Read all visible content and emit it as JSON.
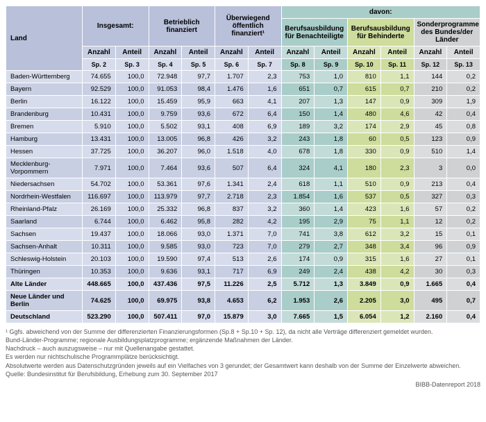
{
  "header": {
    "land": "Land",
    "groups": [
      {
        "label": "Insgesamt:",
        "class": "blue1",
        "sub": [
          "Anzahl",
          "Anteil"
        ],
        "sp": [
          "Sp. 2",
          "Sp. 3"
        ]
      },
      {
        "label": "Betrieblich finanziert",
        "class": "blue1",
        "sub": [
          "Anzahl",
          "Anteil"
        ],
        "sp": [
          "Sp. 4",
          "Sp. 5"
        ]
      },
      {
        "label": "Überwiegend öffentlich finanziert¹",
        "class": "blue1",
        "sub": [
          "Anzahl",
          "Anteil"
        ],
        "sp": [
          "Sp. 6",
          "Sp. 7"
        ]
      }
    ],
    "davon": "davon:",
    "davon_groups": [
      {
        "label": "Berufsausbildung für Benachteiligte",
        "class": "teal1",
        "sub": [
          "Anzahl",
          "Anteil"
        ],
        "sp": [
          "Sp. 8",
          "Sp. 9"
        ]
      },
      {
        "label": "Berufsausbildung für Behinderte",
        "class": "lime1",
        "sub": [
          "Anzahl",
          "Anteil"
        ],
        "sp": [
          "Sp. 10",
          "Sp. 11"
        ]
      },
      {
        "label": "Sonderprogramme des Bundes/der Länder",
        "class": "gray1",
        "sub": [
          "Anzahl",
          "Anteil"
        ],
        "sp": [
          "Sp. 12",
          "Sp. 13"
        ]
      }
    ]
  },
  "rows": [
    {
      "land": "Baden-Württemberg",
      "v": [
        "74.655",
        "100,0",
        "72.948",
        "97,7",
        "1.707",
        "2,3",
        "753",
        "1,0",
        "810",
        "1,1",
        "144",
        "0,2"
      ]
    },
    {
      "land": "Bayern",
      "v": [
        "92.529",
        "100,0",
        "91.053",
        "98,4",
        "1.476",
        "1,6",
        "651",
        "0,7",
        "615",
        "0,7",
        "210",
        "0,2"
      ]
    },
    {
      "land": "Berlin",
      "v": [
        "16.122",
        "100,0",
        "15.459",
        "95,9",
        "663",
        "4,1",
        "207",
        "1,3",
        "147",
        "0,9",
        "309",
        "1,9"
      ]
    },
    {
      "land": "Brandenburg",
      "v": [
        "10.431",
        "100,0",
        "9.759",
        "93,6",
        "672",
        "6,4",
        "150",
        "1,4",
        "480",
        "4,6",
        "42",
        "0,4"
      ]
    },
    {
      "land": "Bremen",
      "v": [
        "5.910",
        "100,0",
        "5.502",
        "93,1",
        "408",
        "6,9",
        "189",
        "3,2",
        "174",
        "2,9",
        "45",
        "0,8"
      ]
    },
    {
      "land": "Hamburg",
      "v": [
        "13.431",
        "100,0",
        "13.005",
        "96,8",
        "426",
        "3,2",
        "243",
        "1,8",
        "60",
        "0,5",
        "123",
        "0,9"
      ]
    },
    {
      "land": "Hessen",
      "v": [
        "37.725",
        "100,0",
        "36.207",
        "96,0",
        "1.518",
        "4,0",
        "678",
        "1,8",
        "330",
        "0,9",
        "510",
        "1,4"
      ]
    },
    {
      "land": "Mecklenburg-Vorpommern",
      "v": [
        "7.971",
        "100,0",
        "7.464",
        "93,6",
        "507",
        "6,4",
        "324",
        "4,1",
        "180",
        "2,3",
        "3",
        "0,0"
      ]
    },
    {
      "land": "Niedersachsen",
      "v": [
        "54.702",
        "100,0",
        "53.361",
        "97,6",
        "1.341",
        "2,4",
        "618",
        "1,1",
        "510",
        "0,9",
        "213",
        "0,4"
      ]
    },
    {
      "land": "Nordrhein-Westfalen",
      "v": [
        "116.697",
        "100,0",
        "113.979",
        "97,7",
        "2.718",
        "2,3",
        "1.854",
        "1,6",
        "537",
        "0,5",
        "327",
        "0,3"
      ]
    },
    {
      "land": "Rheinland-Pfalz",
      "v": [
        "26.169",
        "100,0",
        "25.332",
        "96,8",
        "837",
        "3,2",
        "360",
        "1,4",
        "423",
        "1,6",
        "57",
        "0,2"
      ]
    },
    {
      "land": "Saarland",
      "v": [
        "6.744",
        "100,0",
        "6.462",
        "95,8",
        "282",
        "4,2",
        "195",
        "2,9",
        "75",
        "1,1",
        "12",
        "0,2"
      ]
    },
    {
      "land": "Sachsen",
      "v": [
        "19.437",
        "100,0",
        "18.066",
        "93,0",
        "1.371",
        "7,0",
        "741",
        "3,8",
        "612",
        "3,2",
        "15",
        "0,1"
      ]
    },
    {
      "land": "Sachsen-Anhalt",
      "v": [
        "10.311",
        "100,0",
        "9.585",
        "93,0",
        "723",
        "7,0",
        "279",
        "2,7",
        "348",
        "3,4",
        "96",
        "0,9"
      ]
    },
    {
      "land": "Schleswig-Holstein",
      "v": [
        "20.103",
        "100,0",
        "19.590",
        "97,4",
        "513",
        "2,6",
        "174",
        "0,9",
        "315",
        "1,6",
        "27",
        "0,1"
      ]
    },
    {
      "land": "Thüringen",
      "v": [
        "10.353",
        "100,0",
        "9.636",
        "93,1",
        "717",
        "6,9",
        "249",
        "2,4",
        "438",
        "4,2",
        "30",
        "0,3"
      ]
    }
  ],
  "summary": [
    {
      "land": "Alte Länder",
      "v": [
        "448.665",
        "100,0",
        "437.436",
        "97,5",
        "11.226",
        "2,5",
        "5.712",
        "1,3",
        "3.849",
        "0,9",
        "1.665",
        "0,4"
      ]
    },
    {
      "land": "Neue Länder und Berlin",
      "v": [
        "74.625",
        "100,0",
        "69.975",
        "93,8",
        "4.653",
        "6,2",
        "1.953",
        "2,6",
        "2.205",
        "3,0",
        "495",
        "0,7"
      ]
    },
    {
      "land": "Deutschland",
      "v": [
        "523.290",
        "100,0",
        "507.411",
        "97,0",
        "15.879",
        "3,0",
        "7.665",
        "1,5",
        "6.054",
        "1,2",
        "2.160",
        "0,4"
      ]
    }
  ],
  "footnotes": [
    "¹ Ggfs. abweichend von der Summe der differenzierten Finanzierungsformen (Sp.8 + Sp.10 + Sp. 12), da nicht alle Verträge differenziert gemeldet wurden.",
    "Bund-Länder-Programme; regionale Ausbildungsplatzprogramme; ergänzende Maßnahmen der Länder.",
    "Nachdruck – auch auszugsweise – nur mit Quellenangabe gestattet.",
    "Es werden nur nichtschulische Programmplätze berücksichtigt.",
    "Absolutwerte werden aus Datenschutzgründen jeweils auf ein Vielfaches von 3 gerundet; der Gesamtwert kann deshalb von der Summe der Einzelwerte abweichen.",
    "Quelle: Bundesinstitut für Berufsbildung, Erhebung zum 30. September 2017"
  ],
  "source": "BIBB-Datenreport 2018",
  "colors": {
    "blue1": "#b8c0da",
    "blue2": "#c8cfe3",
    "blue3": "#d7dcec",
    "teal1": "#a9cdc9",
    "teal2": "#c2dbd8",
    "lime1": "#cedc9c",
    "lime2": "#dbe6b8",
    "gray1": "#cfd1d3",
    "gray2": "#dadcde"
  },
  "col_classes": [
    "c-blue",
    "c-blue",
    "c-blue",
    "c-blue",
    "c-blue",
    "c-blue",
    "c-teal",
    "c-teal",
    "c-lime",
    "c-lime",
    "c-gray",
    "c-gray"
  ]
}
